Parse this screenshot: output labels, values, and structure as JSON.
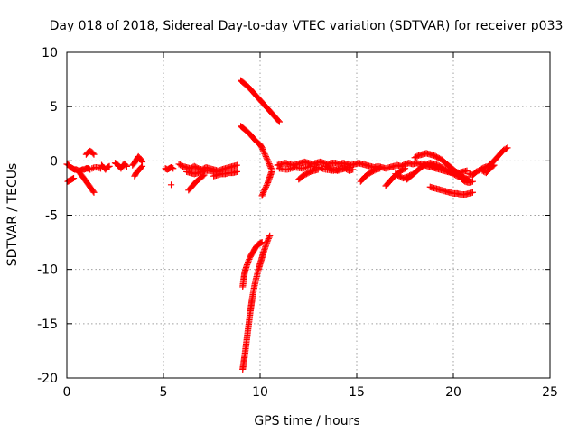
{
  "chart_data": {
    "type": "scatter",
    "title": "Day 018 of 2018, Sidereal Day-to-day VTEC variation (SDTVAR) for receiver p033",
    "xlabel": "GPS time / hours",
    "ylabel": "SDTVAR / TECUs",
    "xlim": [
      0,
      25
    ],
    "ylim": [
      -20,
      10
    ],
    "x_ticks": [
      "0",
      "5",
      "10",
      "15",
      "20",
      "25"
    ],
    "y_ticks": [
      "10",
      "5",
      "0",
      "-5",
      "-10",
      "-15",
      "-20"
    ],
    "grid": true,
    "legend": "none",
    "marker": "plus",
    "colors": {
      "series": "#ff0000",
      "grid": "#a0a0a0",
      "frame": "#000000"
    },
    "series": [
      {
        "segments": [
          {
            "x": [
              0.0,
              0.1,
              0.2,
              0.3,
              0.4,
              0.5,
              0.6,
              0.7,
              0.8,
              0.9,
              1.0,
              1.1,
              1.2
            ],
            "y": [
              -0.3,
              -0.4,
              -0.6,
              -0.7,
              -0.8,
              -0.8,
              -0.9,
              -0.9,
              -0.8,
              -0.8,
              -0.7,
              -0.7,
              -0.8
            ]
          },
          {
            "x": [
              0.05,
              0.15,
              0.25,
              0.35
            ],
            "y": [
              -1.9,
              -1.8,
              -1.7,
              -1.6
            ]
          },
          {
            "x": [
              0.6,
              0.8,
              1.0,
              1.2,
              1.4
            ],
            "y": [
              -1.0,
              -1.4,
              -1.9,
              -2.4,
              -2.9
            ]
          },
          {
            "x": [
              1.0,
              1.1,
              1.2,
              1.3,
              1.4
            ],
            "y": [
              0.6,
              0.8,
              0.9,
              0.8,
              0.6
            ]
          },
          {
            "x": [
              1.3,
              1.45,
              1.6,
              1.75
            ],
            "y": [
              -0.7,
              -0.6,
              -0.6,
              -0.7
            ]
          },
          {
            "x": [
              1.8,
              1.9,
              2.0,
              2.1,
              2.2
            ],
            "y": [
              -0.4,
              -0.6,
              -0.8,
              -0.6,
              -0.5
            ]
          },
          {
            "x": [
              2.5,
              2.6,
              2.7,
              2.8,
              2.9,
              3.0,
              3.1
            ],
            "y": [
              -0.2,
              -0.3,
              -0.5,
              -0.7,
              -0.4,
              -0.3,
              -0.5
            ]
          },
          {
            "x": [
              3.4,
              3.5,
              3.6,
              3.7,
              3.8,
              3.9
            ],
            "y": [
              -0.4,
              -0.2,
              0.1,
              0.4,
              0.2,
              -0.1
            ]
          },
          {
            "x": [
              3.5,
              3.6,
              3.7,
              3.8,
              3.9
            ],
            "y": [
              -1.4,
              -1.1,
              -0.9,
              -0.7,
              -0.5
            ]
          },
          {
            "x": [
              5.1,
              5.2,
              5.3,
              5.4,
              5.5
            ],
            "y": [
              -0.7,
              -0.8,
              -0.7,
              -0.6,
              -0.7
            ]
          },
          {
            "x": [
              5.4
            ],
            "y": [
              -2.2
            ]
          },
          {
            "x": [
              5.8,
              6.0,
              6.2,
              6.4,
              6.6,
              6.8,
              7.0,
              7.2,
              7.4,
              7.6,
              7.8
            ],
            "y": [
              -0.3,
              -0.5,
              -0.6,
              -0.7,
              -0.5,
              -0.7,
              -0.8,
              -0.6,
              -0.7,
              -0.8,
              -0.9
            ]
          },
          {
            "x": [
              6.2,
              6.4,
              6.6,
              6.8,
              7.0,
              7.2,
              7.4,
              7.6,
              7.8,
              8.0,
              8.2,
              8.4,
              8.6,
              8.8
            ],
            "y": [
              -1.0,
              -1.1,
              -1.2,
              -1.1,
              -1.0,
              -0.9,
              -0.9,
              -1.0,
              -1.0,
              -0.8,
              -0.7,
              -0.6,
              -0.5,
              -0.4
            ]
          },
          {
            "x": [
              6.3,
              6.5,
              6.7,
              6.9,
              7.1
            ],
            "y": [
              -2.7,
              -2.3,
              -1.9,
              -1.6,
              -1.3
            ]
          },
          {
            "x": [
              7.6,
              7.8,
              8.0,
              8.2,
              8.4,
              8.6,
              8.8
            ],
            "y": [
              -1.4,
              -1.3,
              -1.2,
              -1.2,
              -1.1,
              -1.1,
              -1.0
            ]
          },
          {
            "x": [
              9.0,
              9.2,
              9.4,
              9.6,
              9.8,
              10.0,
              10.2,
              10.4,
              10.6,
              10.8,
              11.0
            ],
            "y": [
              7.4,
              7.1,
              6.8,
              6.4,
              6.0,
              5.6,
              5.2,
              4.8,
              4.4,
              4.0,
              3.6
            ]
          },
          {
            "x": [
              9.0,
              9.2,
              9.4,
              9.6,
              9.8,
              10.0,
              10.1,
              10.2,
              10.3,
              10.4,
              10.5,
              10.6
            ],
            "y": [
              3.2,
              2.9,
              2.6,
              2.2,
              1.8,
              1.5,
              1.2,
              0.8,
              0.4,
              0.0,
              -0.4,
              -0.8
            ]
          },
          {
            "x": [
              10.6,
              10.5,
              10.4,
              10.3,
              10.2,
              10.1
            ],
            "y": [
              -1.0,
              -1.5,
              -2.0,
              -2.4,
              -2.8,
              -3.2
            ]
          },
          {
            "x": [
              9.1,
              9.15,
              9.2,
              9.3,
              9.4,
              9.5,
              9.6,
              9.7,
              9.8,
              9.9,
              10.0,
              10.1
            ],
            "y": [
              -11.6,
              -10.9,
              -10.3,
              -9.7,
              -9.2,
              -8.8,
              -8.5,
              -8.2,
              -7.9,
              -7.7,
              -7.6,
              -7.5
            ]
          },
          {
            "x": [
              9.1,
              9.15,
              9.2,
              9.25,
              9.3,
              9.35,
              9.4,
              9.45,
              9.5,
              9.55,
              9.6,
              9.7,
              9.8,
              9.9,
              10.0,
              10.1,
              10.2,
              10.3,
              10.4,
              10.5
            ],
            "y": [
              -19.2,
              -18.6,
              -18.0,
              -17.3,
              -16.6,
              -15.9,
              -15.2,
              -14.5,
              -13.8,
              -13.2,
              -12.6,
              -11.6,
              -10.8,
              -10.1,
              -9.5,
              -8.9,
              -8.3,
              -7.8,
              -7.3,
              -6.9
            ]
          },
          {
            "x": [
              10.9,
              11.1,
              11.3,
              11.5,
              11.7,
              11.9,
              12.1,
              12.3,
              12.5,
              12.7,
              12.9,
              13.1,
              13.3,
              13.5,
              13.7,
              13.9,
              14.1,
              14.3,
              14.5,
              14.7,
              14.9,
              15.1,
              15.3,
              15.5,
              15.7,
              15.9,
              16.1,
              16.3,
              16.5,
              16.7,
              16.9,
              17.1,
              17.3,
              17.5,
              17.7,
              17.9,
              18.1,
              18.3,
              18.5,
              18.7,
              18.9,
              19.1,
              19.3,
              19.5,
              19.7,
              19.9,
              20.1,
              20.3,
              20.5,
              20.7
            ],
            "y": [
              -0.4,
              -0.3,
              -0.2,
              -0.3,
              -0.4,
              -0.3,
              -0.2,
              -0.1,
              -0.2,
              -0.3,
              -0.2,
              -0.1,
              -0.2,
              -0.3,
              -0.2,
              -0.2,
              -0.3,
              -0.2,
              -0.3,
              -0.4,
              -0.3,
              -0.2,
              -0.3,
              -0.4,
              -0.5,
              -0.6,
              -0.5,
              -0.6,
              -0.7,
              -0.6,
              -0.5,
              -0.4,
              -0.5,
              -0.3,
              -0.2,
              -0.3,
              -0.2,
              -0.3,
              -0.4,
              -0.5,
              -0.6,
              -0.7,
              -0.8,
              -0.9,
              -1.0,
              -1.1,
              -1.0,
              -1.1,
              -1.0,
              -0.9
            ]
          },
          {
            "x": [
              11.0,
              11.4,
              11.8,
              12.2,
              12.6,
              13.0,
              13.4,
              13.8,
              14.2,
              14.6
            ],
            "y": [
              -0.7,
              -0.8,
              -0.6,
              -0.7,
              -0.5,
              -0.6,
              -0.8,
              -0.9,
              -0.7,
              -0.6
            ]
          },
          {
            "x": [
              12.0,
              12.2,
              12.4,
              12.6,
              12.8,
              13.0
            ],
            "y": [
              -1.7,
              -1.4,
              -1.2,
              -1.0,
              -0.9,
              -0.8
            ]
          },
          {
            "x": [
              13.4,
              13.6,
              13.8,
              14.0,
              14.2,
              14.4,
              14.6,
              14.8
            ],
            "y": [
              -0.5,
              -0.7,
              -0.8,
              -0.9,
              -0.8,
              -0.7,
              -0.9,
              -0.8
            ]
          },
          {
            "x": [
              15.2,
              15.4,
              15.6,
              15.8,
              16.0,
              16.2
            ],
            "y": [
              -1.9,
              -1.5,
              -1.2,
              -1.0,
              -0.8,
              -0.7
            ]
          },
          {
            "x": [
              16.5,
              16.7,
              16.9,
              17.1,
              17.3,
              17.5
            ],
            "y": [
              -2.3,
              -1.9,
              -1.5,
              -1.2,
              -0.9,
              -0.7
            ]
          },
          {
            "x": [
              17.0,
              17.2,
              17.4,
              17.6,
              17.8
            ],
            "y": [
              -1.2,
              -1.4,
              -1.6,
              -1.5,
              -1.3
            ]
          },
          {
            "x": [
              17.6,
              17.8,
              18.0,
              18.2,
              18.4,
              18.6,
              18.8,
              19.0,
              19.2,
              19.4,
              19.6,
              19.8,
              20.0,
              20.2,
              20.4,
              20.6,
              20.8
            ],
            "y": [
              -1.7,
              -1.4,
              -1.1,
              -0.8,
              -0.5,
              -0.3,
              -0.2,
              -0.3,
              -0.4,
              -0.6,
              -0.8,
              -1.0,
              -1.2,
              -1.4,
              -1.5,
              -1.6,
              -1.7
            ]
          },
          {
            "x": [
              18.0,
              18.2,
              18.4,
              18.6,
              18.8,
              19.0,
              19.2,
              19.4,
              19.6,
              19.8,
              20.0,
              20.2,
              20.4,
              20.6,
              20.8
            ],
            "y": [
              0.3,
              0.5,
              0.6,
              0.7,
              0.6,
              0.5,
              0.3,
              0.1,
              -0.2,
              -0.5,
              -0.8,
              -1.1,
              -1.4,
              -1.6,
              -1.8
            ]
          },
          {
            "x": [
              18.8,
              19.0,
              19.2,
              19.4,
              19.6,
              19.8,
              20.0,
              20.2,
              20.4,
              20.6,
              20.8,
              21.0
            ],
            "y": [
              -2.4,
              -2.5,
              -2.6,
              -2.7,
              -2.8,
              -2.9,
              -3.0,
              -3.0,
              -3.1,
              -3.1,
              -3.0,
              -2.9
            ]
          },
          {
            "x": [
              20.4,
              20.6,
              20.8,
              21.0
            ],
            "y": [
              -1.6,
              -1.9,
              -2.0,
              -1.9
            ]
          },
          {
            "x": [
              20.8,
              21.0,
              21.2,
              21.4,
              21.6,
              21.8,
              22.0,
              22.2,
              22.4,
              22.6,
              22.8
            ],
            "y": [
              -1.2,
              -1.3,
              -1.0,
              -0.8,
              -0.6,
              -0.5,
              -0.2,
              0.2,
              0.6,
              1.0,
              1.2
            ]
          },
          {
            "x": [
              21.5,
              21.7,
              21.9,
              22.1
            ],
            "y": [
              -0.9,
              -1.1,
              -0.7,
              -0.4
            ]
          }
        ]
      }
    ]
  }
}
